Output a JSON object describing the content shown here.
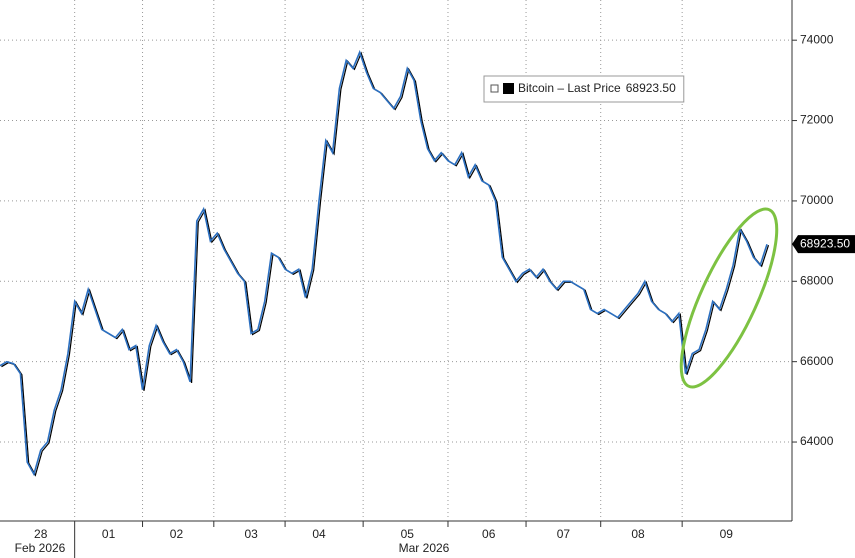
{
  "chart_data": {
    "type": "line",
    "categories": [
      null,
      null,
      null,
      null,
      null,
      null,
      "28",
      null,
      null,
      null,
      null,
      null,
      null,
      null,
      null,
      null,
      "01",
      null,
      null,
      null,
      null,
      null,
      null,
      null,
      null,
      null,
      "02",
      null,
      null,
      null,
      null,
      null,
      null,
      null,
      null,
      null,
      null,
      "03",
      null,
      null,
      null,
      null,
      null,
      null,
      null,
      null,
      null,
      "04",
      null,
      null,
      null,
      null,
      null,
      null,
      null,
      null,
      null,
      null,
      null,
      null,
      "05",
      null,
      null,
      null,
      null,
      null,
      null,
      null,
      null,
      null,
      null,
      null,
      "06",
      null,
      null,
      null,
      null,
      null,
      null,
      null,
      null,
      null,
      null,
      "07",
      null,
      null,
      null,
      null,
      null,
      null,
      null,
      null,
      null,
      null,
      "08",
      null,
      null,
      null,
      null,
      null,
      null,
      null,
      null,
      null,
      null,
      null,
      null,
      "09",
      null,
      null,
      null,
      null,
      null,
      null
    ],
    "secondary_labels": [
      "Feb 2026",
      "Mar 2026"
    ],
    "series": [
      {
        "name": "Bitcoin – Last Price",
        "color": "#2b6fc0",
        "values": [
          65900,
          66000,
          65950,
          65700,
          63500,
          63200,
          63800,
          64000,
          64800,
          65300,
          66200,
          67500,
          67200,
          67800,
          67300,
          66800,
          66700,
          66600,
          66800,
          66300,
          66400,
          65300,
          66400,
          66900,
          66500,
          66200,
          66300,
          66000,
          65500,
          69500,
          69800,
          69000,
          69200,
          68800,
          68500,
          68200,
          68000,
          66700,
          66800,
          67500,
          68700,
          68600,
          68300,
          68200,
          68300,
          67600,
          68300,
          70000,
          71500,
          71200,
          72800,
          73500,
          73300,
          73700,
          73200,
          72800,
          72700,
          72500,
          72300,
          72600,
          73300,
          73000,
          72000,
          71300,
          71000,
          71200,
          71000,
          70900,
          71200,
          70600,
          70900,
          70500,
          70400,
          70000,
          68600,
          68300,
          68000,
          68200,
          68300,
          68100,
          68300,
          68000,
          67800,
          68000,
          68000,
          67900,
          67800,
          67300,
          67200,
          67300,
          67200,
          67100,
          67300,
          67500,
          67700,
          68000,
          67500,
          67300,
          67200,
          67000,
          67200,
          65700,
          66200,
          66300,
          66800,
          67500,
          67300,
          67800,
          68400,
          69300,
          69000,
          68600,
          68400,
          68923.5
        ],
        "value_labels": [
          null,
          null,
          null,
          null,
          null,
          null,
          null,
          null,
          null,
          null,
          null,
          null,
          null,
          null,
          null,
          null,
          null,
          null,
          null,
          null,
          null,
          null,
          null,
          null,
          null,
          null,
          null,
          null,
          null,
          null,
          null,
          null,
          null,
          null,
          null,
          null,
          null,
          null,
          null,
          null,
          null,
          null,
          null,
          null,
          null,
          null,
          null,
          null,
          null,
          null,
          null,
          null,
          null,
          null,
          null,
          null,
          null,
          null,
          null,
          null,
          null,
          null,
          null,
          null,
          null,
          null,
          null,
          null,
          null,
          null,
          null,
          null,
          null,
          null,
          null,
          null,
          null,
          null,
          null,
          null,
          null,
          null,
          null,
          null,
          null,
          null,
          null,
          null,
          null,
          null,
          null,
          null,
          null,
          null,
          null,
          null,
          null,
          null,
          null,
          null,
          null,
          null,
          null,
          null,
          null,
          null,
          null,
          null,
          null,
          null,
          null,
          null,
          null,
          "68923.50"
        ]
      }
    ],
    "ylim": [
      62035,
      75000
    ],
    "yticks": [
      64000,
      66000,
      68000,
      70000,
      72000,
      74000
    ],
    "grid": true
  }
}
